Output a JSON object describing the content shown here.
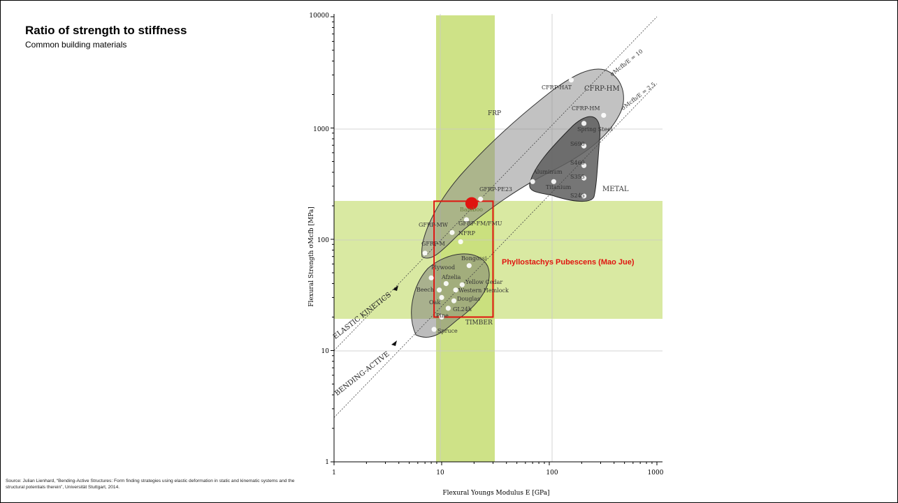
{
  "title": "Ratio of strength to stiffness",
  "subtitle": "Common building materials",
  "source": "Source: Julian Lienhard, “Bending-Active Structures: Form finding strategies using elastic deformation in static and kinematic systems and the structural potentials therein”, Universität Stuttgart, 2014.",
  "colors": {
    "highlight_band": "#c9df7a",
    "highlight_box": "#e0140f",
    "group_fill": "#9b9b9b",
    "metal_fill": "#6f6f6f"
  },
  "chart_data": {
    "type": "scatter",
    "x_scale": "log",
    "y_scale": "log",
    "xlabel": "Flexural Youngs Modulus E [GPa]",
    "ylabel": "Flexural Strength σMcfb [MPa]",
    "xlim": [
      1,
      1000
    ],
    "ylim": [
      1,
      10000
    ],
    "x_ticks": [
      "1",
      "10",
      "100",
      "1000"
    ],
    "y_ticks": [
      "1",
      "10",
      "100",
      "1000",
      "10000"
    ],
    "grid": true,
    "ratio_lines": [
      {
        "label": "σMcfb/E = 10",
        "ratio": 10
      },
      {
        "label": "σMcfb/E = 2.5",
        "ratio": 2.5
      }
    ],
    "line_annotations": [
      "ELASTIC KINETICS",
      "BENDING-ACTIVE"
    ],
    "groups": [
      "FRP",
      "CFRP-HM",
      "METAL",
      "TIMBER"
    ],
    "points": [
      {
        "label": "CFRP-HAT",
        "x": 160,
        "y": 2700
      },
      {
        "label": "CFRP-HM",
        "x": 320,
        "y": 1300
      },
      {
        "label": "Spring Steel",
        "x": 210,
        "y": 1100
      },
      {
        "label": "S690",
        "x": 210,
        "y": 690
      },
      {
        "label": "S460",
        "x": 210,
        "y": 460
      },
      {
        "label": "S355",
        "x": 210,
        "y": 355
      },
      {
        "label": "S245",
        "x": 210,
        "y": 245
      },
      {
        "label": "Aluminum",
        "x": 70,
        "y": 330
      },
      {
        "label": "Titanium",
        "x": 110,
        "y": 330
      },
      {
        "label": "GFRP-PE23",
        "x": 23,
        "y": 230
      },
      {
        "label": "Bamboo",
        "x": 19,
        "y": 210
      },
      {
        "label": "GFRP-FM/FMU",
        "x": 17,
        "y": 150
      },
      {
        "label": "GFRP-MW",
        "x": 12.5,
        "y": 115
      },
      {
        "label": "NFRP",
        "x": 15,
        "y": 95
      },
      {
        "label": "GFRP-M",
        "x": 7,
        "y": 75
      },
      {
        "label": "Bongossi",
        "x": 18,
        "y": 58
      },
      {
        "label": "Plywood",
        "x": 8,
        "y": 45
      },
      {
        "label": "Afzelia",
        "x": 11,
        "y": 40
      },
      {
        "label": "Yellow Cedar",
        "x": 15.5,
        "y": 39
      },
      {
        "label": "Beech",
        "x": 9.5,
        "y": 35
      },
      {
        "label": "Western Hemlock",
        "x": 13.5,
        "y": 35
      },
      {
        "label": "Douglas",
        "x": 13,
        "y": 28
      },
      {
        "label": "Oak",
        "x": 10,
        "y": 30
      },
      {
        "label": "GL24h",
        "x": 11.5,
        "y": 24
      },
      {
        "label": "Pine",
        "x": 10,
        "y": 20
      },
      {
        "label": "Spruce",
        "x": 8.5,
        "y": 15.5
      }
    ],
    "highlight": {
      "label": "Phyllostachys Pubescens (Mao Jue)",
      "point": {
        "x": 19,
        "y": 210
      },
      "x_range": [
        8.5,
        30
      ],
      "y_range": [
        20,
        220
      ]
    }
  },
  "labels": {
    "CFRP_HAT": "CFRP-HAT",
    "CFRP_HM_group": "CFRP-HM",
    "CFRP_HM": "CFRP-HM",
    "Spring_Steel": "Spring Steel",
    "S690": "S690",
    "S460": "S460",
    "S355": "S355",
    "S245": "S245",
    "Aluminum": "Aluminum",
    "Titanium": "Titanium",
    "METAL": "METAL",
    "FRP": "FRP",
    "GFRP_PE23": "GFRP-PE23",
    "Bamboo": "Bamboo",
    "GFRP_FM": "GFRP-FM/FMU",
    "GFRP_MW": "GFRP-MW",
    "NFRP": "NFRP",
    "GFRP_M": "GFRP-M",
    "Bongossi": "Bongossi",
    "Plywood": "Plywood",
    "Afzelia": "Afzelia",
    "Yellow_Cedar": "Yellow Cedar",
    "Beech": "Beech",
    "Western_Hemlock": "Western Hemlock",
    "Douglas": "Douglas",
    "Oak": "Oak",
    "GL24h": "GL24h",
    "Pine": "Pine",
    "Spruce": "Spruce",
    "TIMBER": "TIMBER"
  }
}
